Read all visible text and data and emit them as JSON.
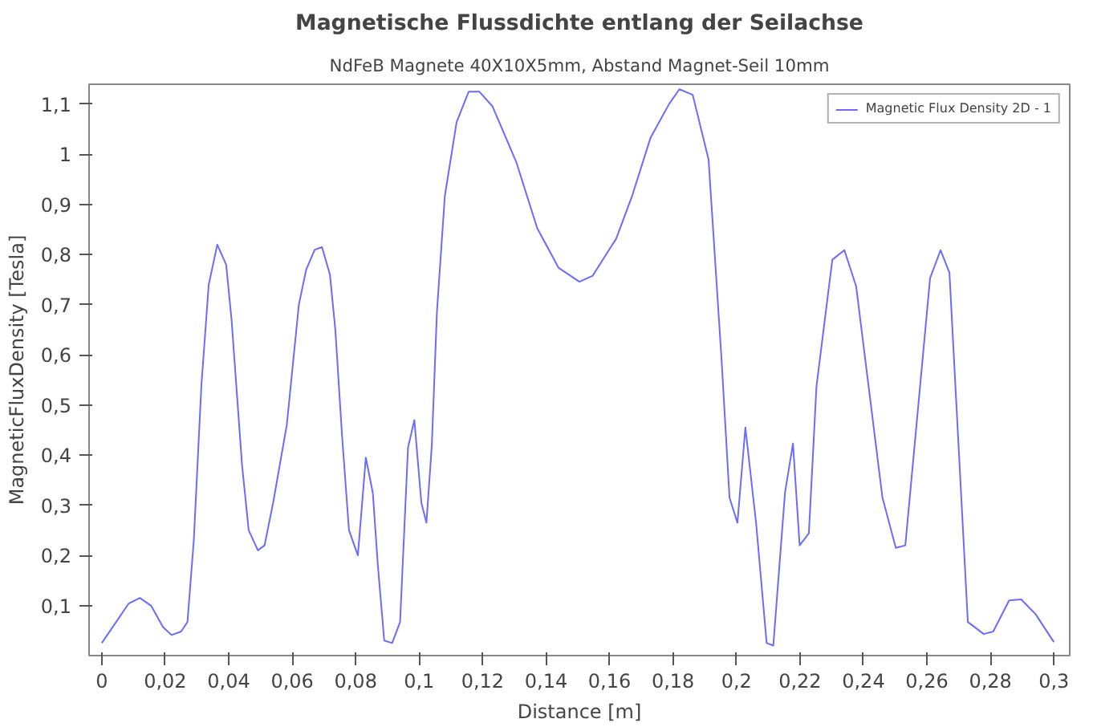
{
  "chart_data": {
    "type": "line",
    "title": "Magnetische Flussdichte entlang der Seilachse",
    "subtitle": "NdFeB Magnete 40X10X5mm, Abstand Magnet-Seil 10mm",
    "xlabel": "Distance [m]",
    "ylabel": "MagneticFluxDensity [Tesla]",
    "xlim": [
      -0.004,
      0.305
    ],
    "ylim": [
      0,
      1.14
    ],
    "xticks": [
      {
        "value": 0,
        "label": "0"
      },
      {
        "value": 0.02,
        "label": "0,02"
      },
      {
        "value": 0.04,
        "label": "0,04"
      },
      {
        "value": 0.06,
        "label": "0,06"
      },
      {
        "value": 0.08,
        "label": "0,08"
      },
      {
        "value": 0.1,
        "label": "0,1"
      },
      {
        "value": 0.12,
        "label": "0,12"
      },
      {
        "value": 0.14,
        "label": "0,14"
      },
      {
        "value": 0.16,
        "label": "0,16"
      },
      {
        "value": 0.18,
        "label": "0,18"
      },
      {
        "value": 0.2,
        "label": "0,2"
      },
      {
        "value": 0.22,
        "label": "0,22"
      },
      {
        "value": 0.24,
        "label": "0,24"
      },
      {
        "value": 0.26,
        "label": "0,26"
      },
      {
        "value": 0.28,
        "label": "0,28"
      },
      {
        "value": 0.3,
        "label": "0,3"
      }
    ],
    "yticks": [
      {
        "value": 0.1,
        "label": "0,1"
      },
      {
        "value": 0.2,
        "label": "0,2"
      },
      {
        "value": 0.3,
        "label": "0,3"
      },
      {
        "value": 0.4,
        "label": "0,4"
      },
      {
        "value": 0.5,
        "label": "0,5"
      },
      {
        "value": 0.6,
        "label": "0,6"
      },
      {
        "value": 0.7,
        "label": "0,7"
      },
      {
        "value": 0.8,
        "label": "0,8"
      },
      {
        "value": 0.9,
        "label": "0,9"
      },
      {
        "value": 1,
        "label": "1"
      },
      {
        "value": 1.1,
        "label": "1,1"
      }
    ],
    "grid": false,
    "legend": "top right",
    "marker": "none",
    "line_style": "solid",
    "series": [
      {
        "name": "Magnetic Flux Density 2D - 1",
        "color": "#6b6bff",
        "x": [
          0,
          0.0085,
          0.012,
          0.0156,
          0.0193,
          0.022,
          0.025,
          0.027,
          0.029,
          0.0314,
          0.0337,
          0.0364,
          0.0392,
          0.0409,
          0.0442,
          0.0463,
          0.0492,
          0.0513,
          0.054,
          0.0583,
          0.0621,
          0.0644,
          0.0671,
          0.0694,
          0.0719,
          0.0736,
          0.0757,
          0.0779,
          0.0807,
          0.0832,
          0.0854,
          0.087,
          0.089,
          0.0915,
          0.094,
          0.0965,
          0.0985,
          0.1007,
          0.1023,
          0.104,
          0.1056,
          0.1081,
          0.1118,
          0.1156,
          0.119,
          0.1231,
          0.1306,
          0.1372,
          0.1439,
          0.1505,
          0.1547,
          0.1621,
          0.1671,
          0.1729,
          0.1788,
          0.182,
          0.1862,
          0.1912,
          0.1953,
          0.1978,
          0.2003,
          0.2028,
          0.2062,
          0.2095,
          0.2116,
          0.2153,
          0.2178,
          0.2199,
          0.2228,
          0.2252,
          0.2302,
          0.234,
          0.2377,
          0.246,
          0.2502,
          0.2532,
          0.261,
          0.2643,
          0.2671,
          0.2729,
          0.2779,
          0.2809,
          0.2859,
          0.2897,
          0.2942,
          0.3
        ],
        "values": [
          0.025,
          0.104,
          0.115,
          0.099,
          0.057,
          0.041,
          0.048,
          0.067,
          0.23,
          0.54,
          0.74,
          0.82,
          0.78,
          0.67,
          0.38,
          0.25,
          0.21,
          0.22,
          0.305,
          0.46,
          0.7,
          0.77,
          0.81,
          0.815,
          0.76,
          0.65,
          0.44,
          0.25,
          0.2,
          0.395,
          0.325,
          0.18,
          0.03,
          0.025,
          0.067,
          0.415,
          0.47,
          0.305,
          0.265,
          0.42,
          0.685,
          0.917,
          1.064,
          1.125,
          1.125,
          1.096,
          0.985,
          0.853,
          0.774,
          0.746,
          0.758,
          0.832,
          0.917,
          1.033,
          1.101,
          1.13,
          1.119,
          0.99,
          0.59,
          0.315,
          0.265,
          0.455,
          0.263,
          0.025,
          0.02,
          0.326,
          0.423,
          0.22,
          0.244,
          0.537,
          0.79,
          0.809,
          0.737,
          0.315,
          0.215,
          0.22,
          0.753,
          0.809,
          0.764,
          0.067,
          0.043,
          0.048,
          0.11,
          0.112,
          0.083,
          0.027
        ]
      }
    ]
  }
}
